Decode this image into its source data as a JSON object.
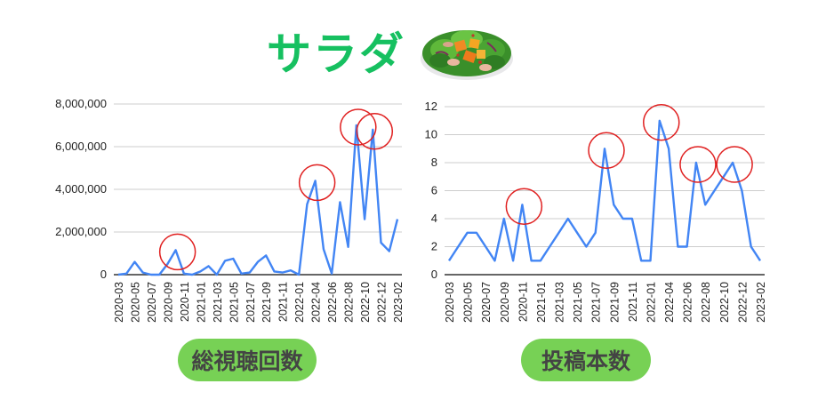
{
  "header": {
    "title": "サラダ",
    "icon": "salad-bowl-icon"
  },
  "labels": {
    "left": "総視聴回数",
    "right": "投稿本数"
  },
  "colors": {
    "line": "#4285f4",
    "title": "#16c060",
    "pill": "#77d155",
    "pill_text": "#444444",
    "highlight": "#e02020",
    "grid": "#cccccc"
  },
  "chart_data": [
    {
      "type": "line",
      "title": "総視聴回数",
      "xlabel": "",
      "ylabel": "",
      "ylim": [
        0,
        8000000
      ],
      "yticks": [
        "0",
        "2,000,000",
        "4,000,000",
        "6,000,000",
        "8,000,000"
      ],
      "xtick_labels": [
        "2020-03",
        "2020-05",
        "2020-07",
        "2020-09",
        "2020-11",
        "2021-01",
        "2021-03",
        "2021-05",
        "2021-07",
        "2021-09",
        "2021-11",
        "2022-01",
        "2022-04",
        "2022-06",
        "2022-08",
        "2022-10",
        "2022-12",
        "2023-02"
      ],
      "grid": true,
      "values": [
        0,
        50000,
        600000,
        100000,
        0,
        0,
        500000,
        1150000,
        50000,
        0,
        150000,
        400000,
        0,
        650000,
        750000,
        50000,
        100000,
        600000,
        900000,
        150000,
        100000,
        200000,
        0,
        3300000,
        4400000,
        1200000,
        50000,
        3400000,
        1300000,
        7000000,
        2600000,
        6800000,
        1500000,
        1100000,
        2600000
      ],
      "highlighted_indices": [
        7,
        24,
        29,
        31
      ]
    },
    {
      "type": "line",
      "title": "投稿本数",
      "xlabel": "",
      "ylabel": "",
      "ylim": [
        0,
        12
      ],
      "yticks": [
        "0",
        "2",
        "4",
        "6",
        "8",
        "10",
        "12"
      ],
      "xtick_labels": [
        "2020-03",
        "2020-05",
        "2020-07",
        "2020-09",
        "2020-11",
        "2021-01",
        "2021-03",
        "2021-05",
        "2021-07",
        "2021-09",
        "2021-11",
        "2022-01",
        "2022-04",
        "2022-06",
        "2022-08",
        "2022-10",
        "2022-12",
        "2023-02"
      ],
      "grid": true,
      "values": [
        1,
        2,
        3,
        3,
        2,
        1,
        4,
        1,
        5,
        1,
        1,
        2,
        3,
        4,
        3,
        2,
        3,
        9,
        5,
        4,
        4,
        1,
        1,
        11,
        9,
        2,
        2,
        8,
        5,
        6,
        7,
        8,
        6,
        2,
        1
      ],
      "highlighted_indices": [
        8,
        17,
        23,
        27,
        31
      ]
    }
  ]
}
